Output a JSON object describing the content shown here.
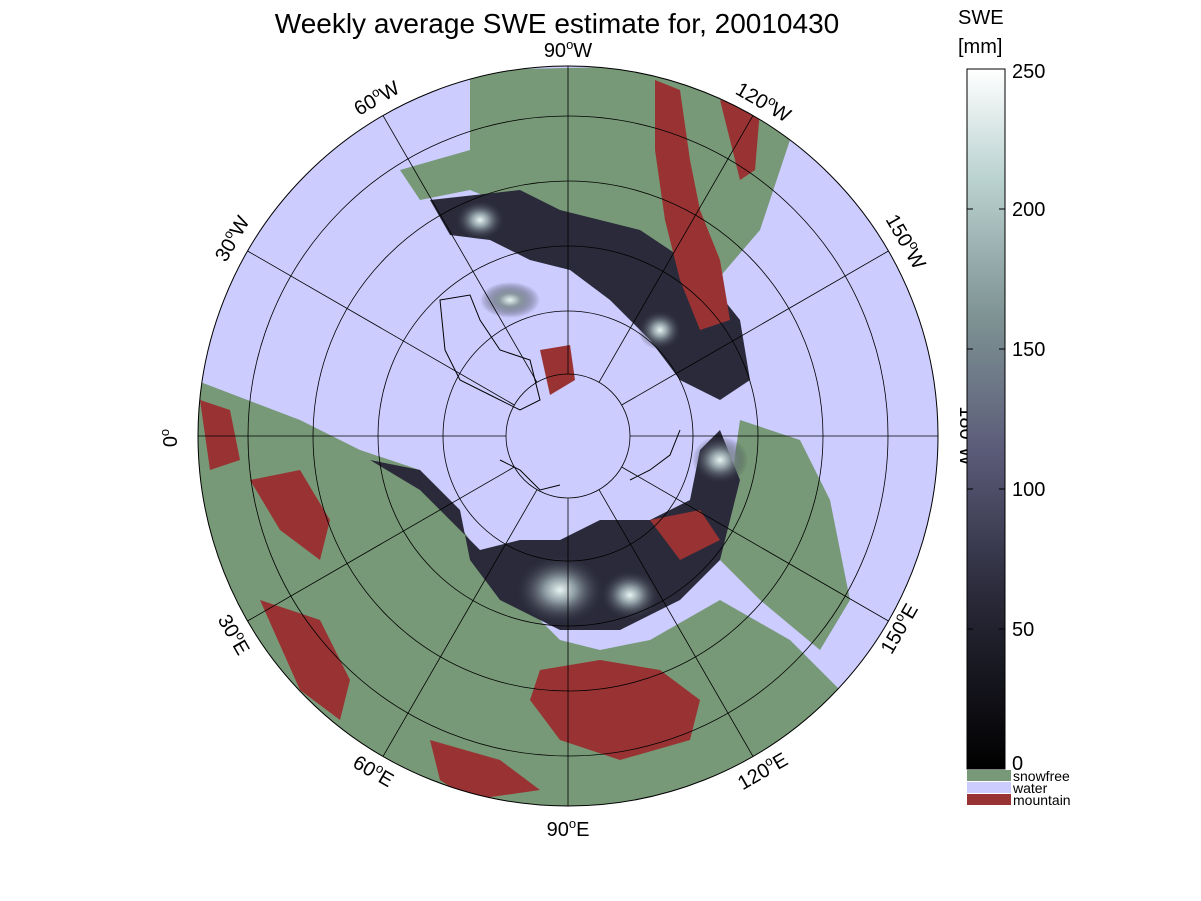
{
  "title": "Weekly average SWE estimate for, 20010430",
  "colorbar": {
    "title_line1": "SWE",
    "title_line2": "[mm]",
    "ticks": [
      "0",
      "50",
      "100",
      "150",
      "200",
      "250"
    ],
    "categories": [
      {
        "label": "snowfree",
        "color": "#779977"
      },
      {
        "label": "water",
        "color": "#ccccff"
      },
      {
        "label": "mountain",
        "color": "#993333"
      }
    ]
  },
  "longitude_labels": [
    {
      "deg": "90",
      "hemi": "W"
    },
    {
      "deg": "120",
      "hemi": "W"
    },
    {
      "deg": "150",
      "hemi": "W"
    },
    {
      "deg": "180",
      "hemi": "W"
    },
    {
      "deg": "150",
      "hemi": "E"
    },
    {
      "deg": "120",
      "hemi": "E"
    },
    {
      "deg": "90",
      "hemi": "E"
    },
    {
      "deg": "60",
      "hemi": "E"
    },
    {
      "deg": "30",
      "hemi": "E"
    },
    {
      "deg": "0",
      "hemi": ""
    },
    {
      "deg": "30",
      "hemi": "W"
    },
    {
      "deg": "60",
      "hemi": "W"
    }
  ],
  "colors": {
    "snowfree": "#779977",
    "water": "#ccccff",
    "mountain": "#993333",
    "swe_low": "#000000",
    "swe_high": "#ffffff"
  }
}
